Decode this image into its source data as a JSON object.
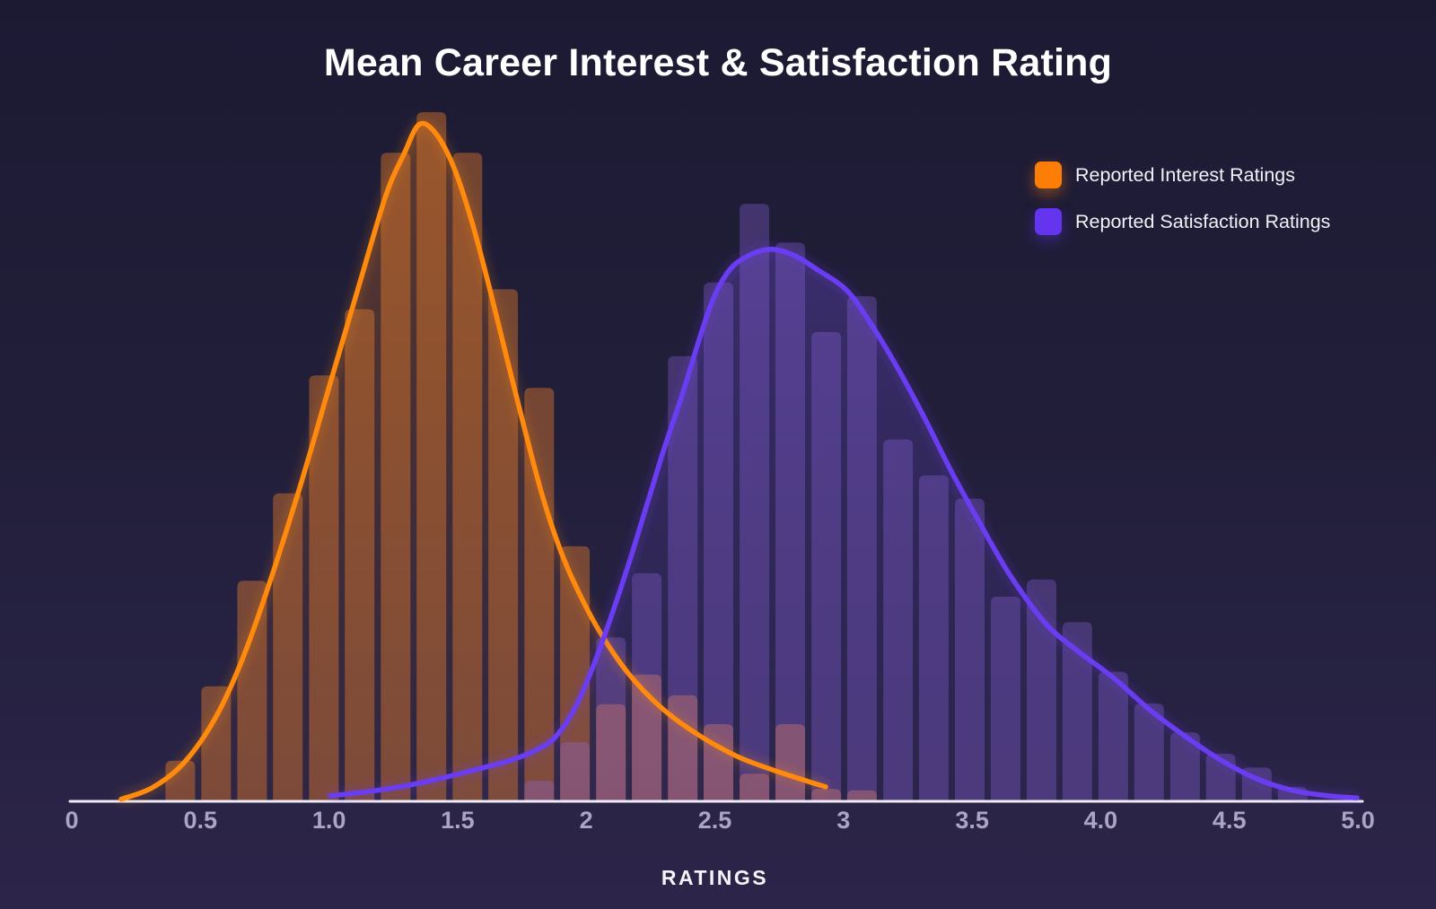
{
  "title": "Mean Career Interest & Satisfaction Rating",
  "legend": [
    {
      "label": "Reported Interest Ratings",
      "color": "#fc7e07"
    },
    {
      "label": "Reported Satisfaction Ratings",
      "color": "#6434ee"
    }
  ],
  "colors": {
    "background_top": "#1c1a33",
    "background_bottom": "#2d2549",
    "axis_line": "#eeebf5",
    "tick_label": "#aba4c2",
    "axis_title": "#f5f3fa",
    "title_text": "#ffffff",
    "interest_curve": "#ff8a0d",
    "satisfaction_curve": "#6a3df2",
    "interest_bar_fill": "rgba(255,138,43,0.38)",
    "satisfaction_bar_fill": "rgba(148,108,235,0.31)",
    "interest_area_top": "rgba(255,132,30,0.28)",
    "interest_area_bottom": "rgba(255,132,30,0.02)",
    "satisfaction_area_top": "rgba(122,84,235,0.30)",
    "satisfaction_area_bottom": "rgba(104,74,212,0.03)"
  },
  "chart_data": {
    "type": "bar",
    "subtype": "overlaid-histograms-with-kde",
    "title": "Mean Career Interest & Satisfaction Rating",
    "xlabel": "RATINGS",
    "ylabel": "",
    "xlim": [
      0,
      5
    ],
    "ylim": [
      0,
      1.05
    ],
    "y_axis_visible": false,
    "grid": false,
    "legend_position": "top-right",
    "y_unit": "relative density (tallest interest bin = 1.0)",
    "bin_width": 0.14,
    "x_ticks": [
      {
        "value": 0,
        "label": "0"
      },
      {
        "value": 0.5,
        "label": "0.5"
      },
      {
        "value": 1.0,
        "label": "1.0"
      },
      {
        "value": 1.5,
        "label": "1.5"
      },
      {
        "value": 2.0,
        "label": "2"
      },
      {
        "value": 2.5,
        "label": "2.5"
      },
      {
        "value": 3.0,
        "label": "3"
      },
      {
        "value": 3.5,
        "label": "3.5"
      },
      {
        "value": 4.0,
        "label": "4.0"
      },
      {
        "value": 4.5,
        "label": "4.5"
      },
      {
        "value": 5.0,
        "label": "5.0"
      }
    ],
    "series": [
      {
        "name": "Reported Interest Ratings",
        "kind": "histogram+kde",
        "bins": [
          [
            0.422,
            0.059
          ],
          [
            0.561,
            0.167
          ],
          [
            0.701,
            0.32
          ],
          [
            0.84,
            0.447
          ],
          [
            0.98,
            0.618
          ],
          [
            1.119,
            0.714
          ],
          [
            1.259,
            0.941
          ],
          [
            1.398,
            1.0
          ],
          [
            1.538,
            0.941
          ],
          [
            1.677,
            0.743
          ],
          [
            1.817,
            0.6
          ],
          [
            1.956,
            0.37
          ],
          [
            2.096,
            0.141
          ],
          [
            2.235,
            0.184
          ],
          [
            2.375,
            0.154
          ],
          [
            2.514,
            0.112
          ],
          [
            2.654,
            0.04
          ],
          [
            2.793,
            0.112
          ],
          [
            2.933,
            0.018
          ],
          [
            3.072,
            0.016
          ]
        ],
        "kde_curve": [
          [
            0.192,
            0.003
          ],
          [
            0.314,
            0.02
          ],
          [
            0.436,
            0.056
          ],
          [
            0.558,
            0.121
          ],
          [
            0.663,
            0.206
          ],
          [
            0.768,
            0.316
          ],
          [
            0.89,
            0.46
          ],
          [
            1.012,
            0.616
          ],
          [
            1.117,
            0.749
          ],
          [
            1.221,
            0.879
          ],
          [
            1.291,
            0.939
          ],
          [
            1.35,
            0.982
          ],
          [
            1.413,
            0.97
          ],
          [
            1.483,
            0.922
          ],
          [
            1.553,
            0.844
          ],
          [
            1.623,
            0.746
          ],
          [
            1.692,
            0.642
          ],
          [
            1.762,
            0.538
          ],
          [
            1.832,
            0.44
          ],
          [
            1.902,
            0.362
          ],
          [
            1.971,
            0.303
          ],
          [
            2.059,
            0.242
          ],
          [
            2.163,
            0.186
          ],
          [
            2.285,
            0.138
          ],
          [
            2.425,
            0.099
          ],
          [
            2.582,
            0.066
          ],
          [
            2.722,
            0.046
          ],
          [
            2.861,
            0.029
          ],
          [
            2.931,
            0.021
          ]
        ]
      },
      {
        "name": "Reported Satisfaction Ratings",
        "kind": "histogram+kde",
        "bins": [
          [
            1.817,
            0.03
          ],
          [
            1.956,
            0.086
          ],
          [
            2.096,
            0.238
          ],
          [
            2.235,
            0.331
          ],
          [
            2.375,
            0.646
          ],
          [
            2.514,
            0.753
          ],
          [
            2.654,
            0.867
          ],
          [
            2.793,
            0.811
          ],
          [
            2.933,
            0.681
          ],
          [
            3.072,
            0.733
          ],
          [
            3.212,
            0.525
          ],
          [
            3.351,
            0.473
          ],
          [
            3.491,
            0.439
          ],
          [
            3.63,
            0.297
          ],
          [
            3.77,
            0.322
          ],
          [
            3.909,
            0.26
          ],
          [
            4.049,
            0.188
          ],
          [
            4.188,
            0.142
          ],
          [
            4.328,
            0.1
          ],
          [
            4.467,
            0.069
          ],
          [
            4.607,
            0.049
          ],
          [
            4.746,
            0.021
          ]
        ],
        "kde_curve": [
          [
            1.005,
            0.008
          ],
          [
            1.151,
            0.014
          ],
          [
            1.291,
            0.022
          ],
          [
            1.43,
            0.033
          ],
          [
            1.57,
            0.046
          ],
          [
            1.71,
            0.06
          ],
          [
            1.814,
            0.076
          ],
          [
            1.884,
            0.095
          ],
          [
            1.954,
            0.134
          ],
          [
            2.024,
            0.193
          ],
          [
            2.093,
            0.264
          ],
          [
            2.163,
            0.342
          ],
          [
            2.233,
            0.427
          ],
          [
            2.303,
            0.512
          ],
          [
            2.373,
            0.59
          ],
          [
            2.477,
            0.713
          ],
          [
            2.547,
            0.766
          ],
          [
            2.617,
            0.789
          ],
          [
            2.714,
            0.801
          ],
          [
            2.809,
            0.792
          ],
          [
            2.896,
            0.772
          ],
          [
            3.011,
            0.742
          ],
          [
            3.105,
            0.694
          ],
          [
            3.21,
            0.629
          ],
          [
            3.314,
            0.557
          ],
          [
            3.419,
            0.479
          ],
          [
            3.524,
            0.408
          ],
          [
            3.646,
            0.329
          ],
          [
            3.786,
            0.258
          ],
          [
            3.908,
            0.219
          ],
          [
            4.047,
            0.18
          ],
          [
            4.187,
            0.134
          ],
          [
            4.326,
            0.095
          ],
          [
            4.466,
            0.06
          ],
          [
            4.605,
            0.033
          ],
          [
            4.745,
            0.016
          ],
          [
            4.884,
            0.008
          ],
          [
            4.997,
            0.005
          ]
        ]
      }
    ]
  }
}
